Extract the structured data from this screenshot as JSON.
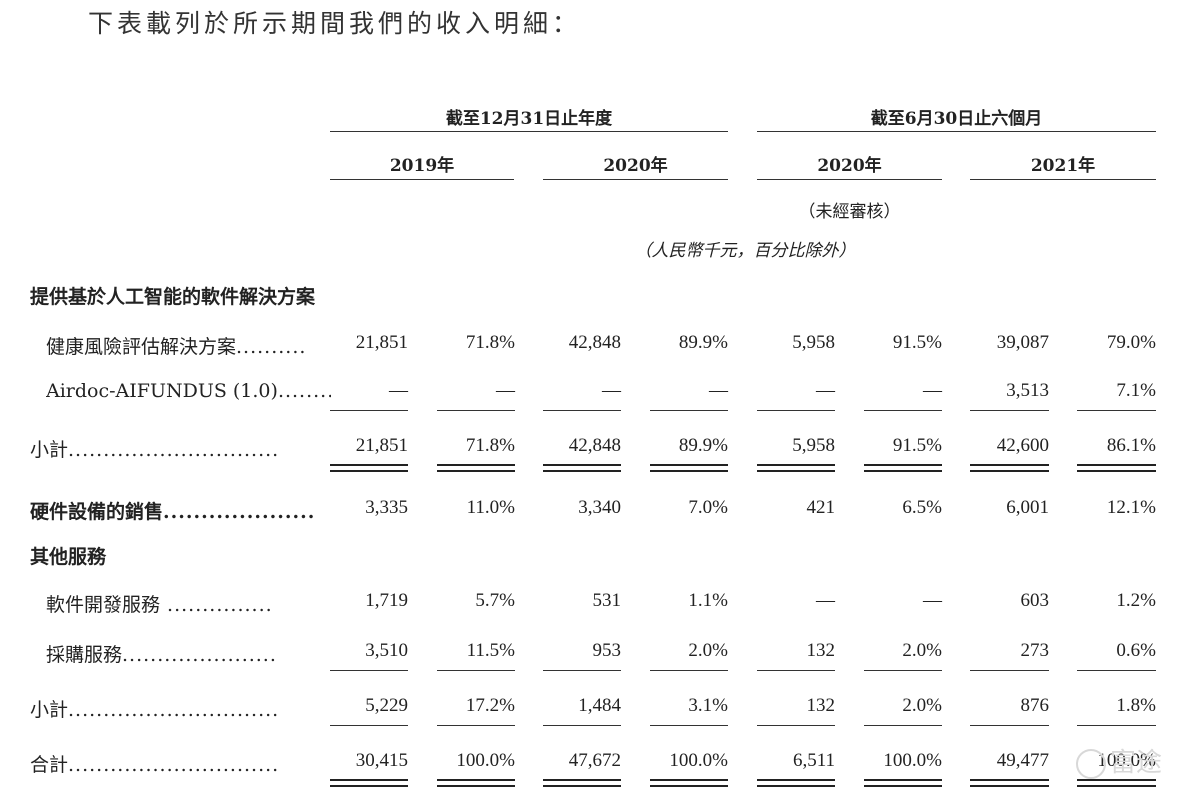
{
  "intro": "下表載列於所示期間我們的收入明細：",
  "headers": {
    "group1": "截至12月31日止年度",
    "group2": "截至6月30日止六個月",
    "years": [
      "2019年",
      "2020年",
      "2020年",
      "2021年"
    ],
    "unaudited": "（未經審核）",
    "units": "（人民幣千元，百分比除外）"
  },
  "rows": [
    {
      "label": "提供基於人工智能的軟件解決方案",
      "bold": true,
      "indent": false,
      "dots": "",
      "values": [],
      "line": "none"
    },
    {
      "label": "健康風險評估解決方案",
      "bold": false,
      "indent": true,
      "dots": "..........",
      "values": [
        "21,851",
        "71.8%",
        "42,848",
        "89.9%",
        "5,958",
        "91.5%",
        "39,087",
        "79.0%"
      ],
      "line": "none"
    },
    {
      "label": "Airdoc-AIFUNDUS (1.0)",
      "bold": false,
      "indent": true,
      "dots": "...........",
      "values": [
        "—",
        "—",
        "—",
        "—",
        "—",
        "—",
        "3,513",
        "7.1%"
      ],
      "line": "single"
    },
    {
      "label": "小計",
      "bold": false,
      "indent": false,
      "dots": "..............................",
      "values": [
        "21,851",
        "71.8%",
        "42,848",
        "89.9%",
        "5,958",
        "91.5%",
        "42,600",
        "86.1%"
      ],
      "line": "double"
    },
    {
      "label": "硬件設備的銷售",
      "bold": true,
      "indent": false,
      "dots": "....................",
      "values": [
        "3,335",
        "11.0%",
        "3,340",
        "7.0%",
        "421",
        "6.5%",
        "6,001",
        "12.1%"
      ],
      "line": "none"
    },
    {
      "label": "其他服務",
      "bold": true,
      "indent": false,
      "dots": "",
      "values": [],
      "line": "none"
    },
    {
      "label": "軟件開發服務",
      "bold": false,
      "indent": true,
      "dots": " ...............",
      "values": [
        "1,719",
        "5.7%",
        "531",
        "1.1%",
        "—",
        "—",
        "603",
        "1.2%"
      ],
      "line": "none"
    },
    {
      "label": "採購服務",
      "bold": false,
      "indent": true,
      "dots": "......................",
      "values": [
        "3,510",
        "11.5%",
        "953",
        "2.0%",
        "132",
        "2.0%",
        "273",
        "0.6%"
      ],
      "line": "single"
    },
    {
      "label": "小計",
      "bold": false,
      "indent": false,
      "dots": "..............................",
      "values": [
        "5,229",
        "17.2%",
        "1,484",
        "3.1%",
        "132",
        "2.0%",
        "876",
        "1.8%"
      ],
      "line": "single"
    },
    {
      "label": "合計",
      "bold": false,
      "indent": false,
      "dots": "..............................",
      "values": [
        "30,415",
        "100.0%",
        "47,672",
        "100.0%",
        "6,511",
        "100.0%",
        "49,477",
        "100.0%"
      ],
      "line": "double"
    }
  ],
  "watermark": "富途"
}
